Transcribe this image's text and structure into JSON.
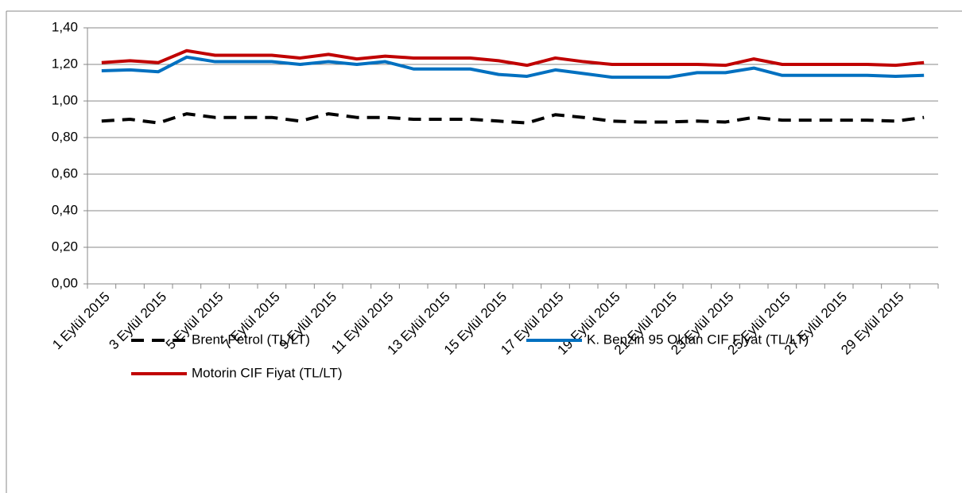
{
  "chart_data": {
    "type": "line",
    "categories": [
      "1 Eylül 2015",
      null,
      "3 Eylül 2015",
      null,
      "5 Eylül 2015",
      null,
      "7 Eylül 2015",
      null,
      "9 Eylül 2015",
      null,
      "11 Eylül 2015",
      null,
      "13 Eylül 2015",
      null,
      "15 Eylül 2015",
      null,
      "17 Eylül 2015",
      null,
      "19 Eylül 2015",
      null,
      "21 Eylül 2015",
      null,
      "23 Eylül 2015",
      null,
      "25 Eylül 2015",
      null,
      "27 Eylül 2015",
      null,
      "29 Eylül 2015",
      null
    ],
    "series": [
      {
        "name": "Brent Petrol (TL/LT)",
        "color": "#000000",
        "dash": true,
        "values": [
          0.89,
          0.9,
          0.88,
          0.93,
          0.91,
          0.91,
          0.91,
          0.89,
          0.93,
          0.91,
          0.91,
          0.9,
          0.9,
          0.9,
          0.89,
          0.88,
          0.925,
          0.91,
          0.89,
          0.885,
          0.885,
          0.89,
          0.885,
          0.91,
          0.895,
          0.895,
          0.895,
          0.895,
          0.89,
          0.91
        ]
      },
      {
        "name": "K. Benzin 95 Oktan CIF Fiyat (TL/LT)",
        "color": "#0070c0",
        "dash": false,
        "values": [
          1.165,
          1.17,
          1.16,
          1.24,
          1.215,
          1.215,
          1.215,
          1.2,
          1.215,
          1.2,
          1.215,
          1.175,
          1.175,
          1.175,
          1.145,
          1.135,
          1.17,
          1.15,
          1.13,
          1.13,
          1.13,
          1.155,
          1.155,
          1.18,
          1.14,
          1.14,
          1.14,
          1.14,
          1.135,
          1.14
        ]
      },
      {
        "name": "Motorin CIF Fiyat (TL/LT)",
        "color": "#c00000",
        "dash": false,
        "values": [
          1.21,
          1.22,
          1.21,
          1.275,
          1.25,
          1.25,
          1.25,
          1.235,
          1.255,
          1.23,
          1.245,
          1.235,
          1.235,
          1.235,
          1.22,
          1.195,
          1.235,
          1.215,
          1.2,
          1.2,
          1.2,
          1.2,
          1.195,
          1.23,
          1.2,
          1.2,
          1.2,
          1.2,
          1.195,
          1.21
        ]
      }
    ],
    "ylim": [
      0,
      1.4
    ],
    "yticks": [
      {
        "value": 0,
        "label": "0,00"
      },
      {
        "value": 0.2,
        "label": "0,20"
      },
      {
        "value": 0.4,
        "label": "0,40"
      },
      {
        "value": 0.6,
        "label": "0,60"
      },
      {
        "value": 0.8,
        "label": "0,80"
      },
      {
        "value": 1.0,
        "label": "1,00"
      },
      {
        "value": 1.2,
        "label": "1,20"
      },
      {
        "value": 1.4,
        "label": "1,40"
      }
    ],
    "grid": true
  }
}
